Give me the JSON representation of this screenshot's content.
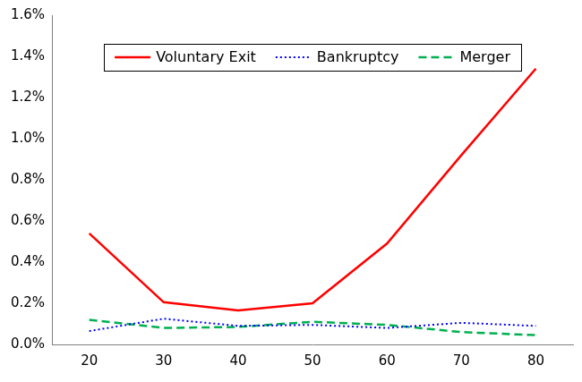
{
  "chart_data": {
    "type": "line",
    "categories": [
      "20",
      "30",
      "40",
      "50",
      "60",
      "70",
      "80"
    ],
    "series": [
      {
        "name": "Voluntary Exit",
        "color": "#ff0000",
        "line_style": "solid",
        "marker": "none",
        "values": [
          0.54,
          0.205,
          0.165,
          0.2,
          0.49,
          0.92,
          1.34
        ]
      },
      {
        "name": "Bankruptcy",
        "color": "#0000ff",
        "line_style": "dotted",
        "marker": "none",
        "values": [
          0.065,
          0.125,
          0.09,
          0.095,
          0.08,
          0.105,
          0.09
        ]
      },
      {
        "name": "Merger",
        "color": "#00b050",
        "line_style": "dashed",
        "marker": "none",
        "values": [
          0.12,
          0.08,
          0.085,
          0.11,
          0.095,
          0.06,
          0.045
        ]
      }
    ],
    "ylim": [
      0,
      1.6
    ],
    "yticks": [
      {
        "value": 0,
        "label": "0.0%"
      },
      {
        "value": 0.2,
        "label": "0.2%"
      },
      {
        "value": 0.4,
        "label": "0.4%"
      },
      {
        "value": 0.6,
        "label": "0.6%"
      },
      {
        "value": 0.8,
        "label": "0.8%"
      },
      {
        "value": 1.0,
        "label": "1.0%"
      },
      {
        "value": 1.2,
        "label": "1.2%"
      },
      {
        "value": 1.4,
        "label": "1.4%"
      },
      {
        "value": 1.6,
        "label": "1.6%"
      }
    ],
    "grid": false,
    "legend": "top"
  }
}
